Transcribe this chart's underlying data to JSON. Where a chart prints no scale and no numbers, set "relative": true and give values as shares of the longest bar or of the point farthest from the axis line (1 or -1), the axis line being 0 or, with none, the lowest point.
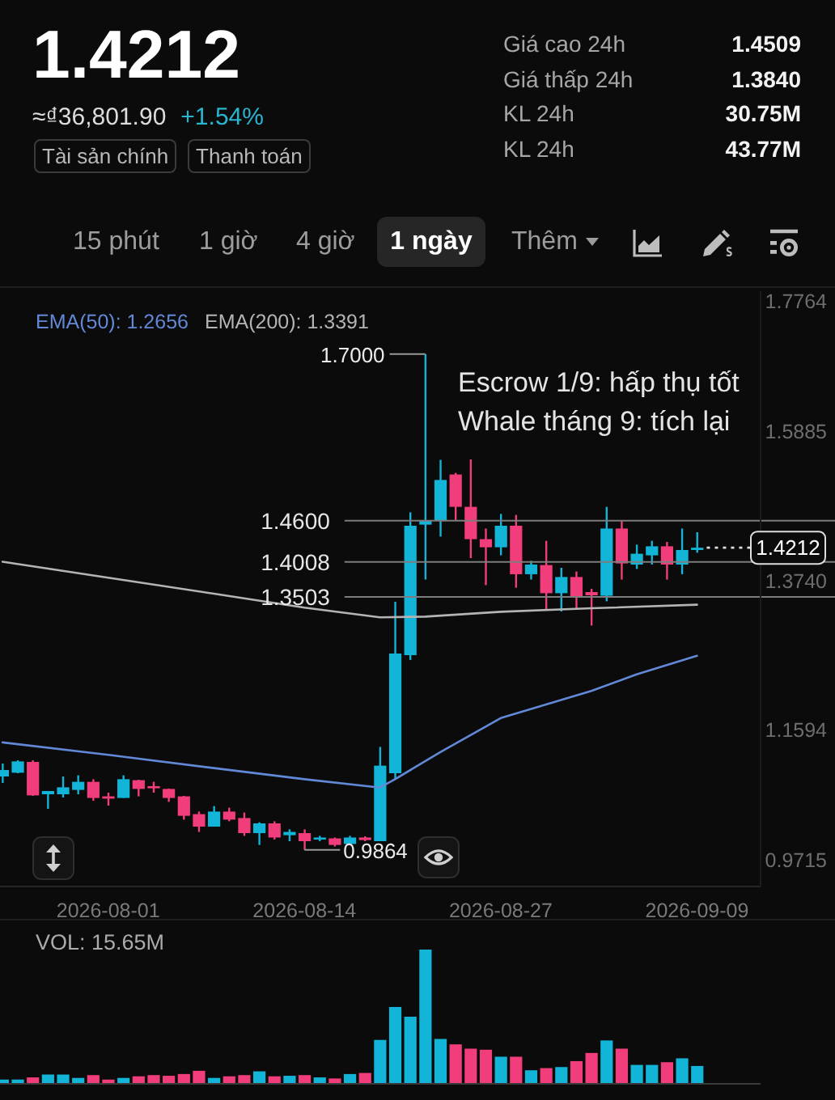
{
  "chart_data": [
    {
      "type": "other",
      "title": "1.4212",
      "annotations": [
        "≈₫36,801.90",
        "+1.54%",
        "Tài sản chính",
        "Thanh toán",
        "Giá cao 24h",
        "1.4509",
        "Giá thấp 24h",
        "1.3840",
        "KL 24h",
        "30.75M",
        "KL 24h",
        "43.77M",
        "15 phút",
        "1 giờ",
        "4 giờ",
        "1 ngày",
        "Thêm"
      ]
    },
    {
      "type": "candlestick",
      "x": [
        "2026-07-25",
        "2026-07-26",
        "2026-07-27",
        "2026-07-28",
        "2026-07-29",
        "2026-07-30",
        "2026-07-31",
        "2026-08-01",
        "2026-08-02",
        "2026-08-03",
        "2026-08-04",
        "2026-08-05",
        "2026-08-06",
        "2026-08-07",
        "2026-08-08",
        "2026-08-09",
        "2026-08-10",
        "2026-08-11",
        "2026-08-12",
        "2026-08-13",
        "2026-08-14",
        "2026-08-15",
        "2026-08-16",
        "2026-08-17",
        "2026-08-18",
        "2026-08-19",
        "2026-08-20",
        "2026-08-21",
        "2026-08-22",
        "2026-08-23",
        "2026-08-24",
        "2026-08-25",
        "2026-08-26",
        "2026-08-27",
        "2026-08-28",
        "2026-08-29",
        "2026-08-30",
        "2026-08-31",
        "2026-09-01",
        "2026-09-02",
        "2026-09-03",
        "2026-09-04",
        "2026-09-05",
        "2026-09-06",
        "2026-09-07",
        "2026-09-08",
        "2026-09-09"
      ],
      "ohlc": [
        [
          1.0919,
          1.1105,
          1.0826,
          1.1012
        ],
        [
          1.0973,
          1.1152,
          1.0966,
          1.1136
        ],
        [
          1.1129,
          1.1152,
          1.064,
          1.0647
        ],
        [
          1.0663,
          1.071,
          1.0454,
          1.071
        ],
        [
          1.0663,
          1.0919,
          1.0617,
          1.0763
        ],
        [
          1.0726,
          1.0936,
          1.0663,
          1.0842
        ],
        [
          1.0842,
          1.088,
          1.057,
          1.061
        ],
        [
          1.0633,
          1.0686,
          1.05,
          1.06
        ],
        [
          1.061,
          1.0936,
          1.061,
          1.088
        ],
        [
          1.0866,
          1.0873,
          1.0633,
          1.074
        ],
        [
          1.078,
          1.0842,
          1.0686,
          1.0749
        ],
        [
          1.074,
          1.0745,
          1.0554,
          1.061
        ],
        [
          1.0633,
          1.064,
          1.0298,
          1.0353
        ],
        [
          1.0377,
          1.0414,
          1.0121,
          1.0197
        ],
        [
          1.0197,
          1.0493,
          1.0197,
          1.0414
        ],
        [
          1.0414,
          1.047,
          1.0274,
          1.0298
        ],
        [
          1.0321,
          1.04,
          1.0065,
          1.0104
        ],
        [
          1.0104,
          1.026,
          0.9934,
          1.0244
        ],
        [
          1.0244,
          1.0274,
          1.0011,
          1.0041
        ],
        [
          1.0074,
          1.0158,
          0.9988,
          1.0121
        ],
        [
          1.0104,
          1.0158,
          0.9864,
          0.9988
        ],
        [
          1.0011,
          1.0065,
          0.9988,
          1.0041
        ],
        [
          1.0028,
          1.0041,
          0.9911,
          0.9934
        ],
        [
          0.9948,
          1.0065,
          0.9934,
          1.0041
        ],
        [
          1.0041,
          1.0058,
          0.9988,
          1.0004
        ],
        [
          0.9988,
          1.1345,
          0.9988,
          1.1075
        ],
        [
          1.0966,
          1.3434,
          1.088,
          1.2689
        ],
        [
          1.2665,
          1.4721,
          1.2596,
          1.4528
        ],
        [
          1.4544,
          1.7,
          1.3753,
          1.4605
        ],
        [
          1.4605,
          1.5476,
          1.4372,
          1.5187
        ],
        [
          1.5266,
          1.5289,
          1.4605,
          1.48
        ],
        [
          1.48,
          1.5483,
          1.4062,
          1.4335
        ],
        [
          1.4335,
          1.4488,
          1.3673,
          1.4218
        ],
        [
          1.4218,
          1.4698,
          1.4102,
          1.4528
        ],
        [
          1.4528,
          1.4684,
          1.3636,
          1.383
        ],
        [
          1.383,
          1.4023,
          1.3753,
          1.3969
        ],
        [
          1.3962,
          1.4311,
          1.3324,
          1.3557
        ],
        [
          1.3557,
          1.3923,
          1.3294,
          1.379
        ],
        [
          1.379,
          1.3869,
          1.3324,
          1.3497
        ],
        [
          1.3573,
          1.362,
          1.3091,
          1.3527
        ],
        [
          1.352,
          1.48,
          1.3441,
          1.4488
        ],
        [
          1.4488,
          1.4605,
          1.3753,
          1.3985
        ],
        [
          1.3969,
          1.4256,
          1.3906,
          1.4125
        ],
        [
          1.4102,
          1.4311,
          1.3969,
          1.4232
        ],
        [
          1.4232,
          1.4295,
          1.3753,
          1.3969
        ],
        [
          1.3969,
          1.4488,
          1.383,
          1.4179
        ],
        [
          1.4179,
          1.4435,
          1.4139,
          1.4212
        ]
      ],
      "colors": [
        "#12b5d8",
        "#12b5d8",
        "#f23d7c",
        "#12b5d8",
        "#12b5d8",
        "#12b5d8",
        "#f23d7c",
        "#f23d7c",
        "#12b5d8",
        "#f23d7c",
        "#f23d7c",
        "#f23d7c",
        "#f23d7c",
        "#f23d7c",
        "#12b5d8",
        "#f23d7c",
        "#f23d7c",
        "#12b5d8",
        "#f23d7c",
        "#12b5d8",
        "#f23d7c",
        "#12b5d8",
        "#f23d7c",
        "#12b5d8",
        "#f23d7c",
        "#12b5d8",
        "#12b5d8",
        "#12b5d8",
        "#12b5d8",
        "#12b5d8",
        "#f23d7c",
        "#f23d7c",
        "#f23d7c",
        "#12b5d8",
        "#f23d7c",
        "#12b5d8",
        "#f23d7c",
        "#12b5d8",
        "#f23d7c",
        "#f23d7c",
        "#12b5d8",
        "#f23d7c",
        "#12b5d8",
        "#12b5d8",
        "#f23d7c",
        "#12b5d8",
        "#12b5d8"
      ],
      "series": [
        {
          "type": "line",
          "name": "EMA(50): 1.2656",
          "color": "#6289d8",
          "x": [
            "2026-07-25",
            "2026-08-01",
            "2026-08-08",
            "2026-08-14",
            "2026-08-19",
            "2026-08-20",
            "2026-08-23",
            "2026-08-27",
            "2026-09-02",
            "2026-09-05",
            "2026-09-09"
          ],
          "values": [
            1.141,
            1.123,
            1.104,
            1.088,
            1.076,
            1.088,
            1.127,
            1.176,
            1.215,
            1.239,
            1.2656
          ]
        },
        {
          "type": "line",
          "name": "EMA(200): 1.3391",
          "color": "#b4b4b4",
          "x": [
            "2026-07-25",
            "2026-08-01",
            "2026-08-08",
            "2026-08-14",
            "2026-08-19",
            "2026-08-22",
            "2026-08-27",
            "2026-09-02",
            "2026-09-09"
          ],
          "values": [
            1.401,
            1.378,
            1.355,
            1.335,
            1.321,
            1.322,
            1.329,
            1.334,
            1.3391
          ]
        }
      ],
      "xlim": [
        "2026-07-24T20:00",
        "2026-09-13T05:00"
      ],
      "xticks": [
        "2026-08-01",
        "2026-08-14",
        "2026-08-27",
        "2026-09-09"
      ],
      "ylim": [
        0.9336,
        1.7904
      ],
      "yticks": [
        0.9715,
        1.1594,
        {
          "value": 1.374,
          "label": "1.3740"
        },
        1.5885,
        1.7764
      ],
      "ref_lines": [
        {
          "axis": "y",
          "value": 1.46,
          "color": "#7d7d7d"
        },
        {
          "axis": "y",
          "value": 1.4008,
          "color": "#7d7d7d"
        },
        {
          "axis": "y",
          "value": 1.3503,
          "color": "#7d7d7d"
        }
      ],
      "annotations": [
        "Escrow 1/9: hấp thụ tốt",
        "Whale tháng 9: tích lại",
        "1.4600",
        "1.4008",
        "1.3503",
        {
          "text": "1.7000",
          "x": "2026-08-22",
          "y": 1.7
        },
        {
          "text": "0.9864",
          "x": "2026-08-14",
          "y": 0.9864
        },
        {
          "text": "1.4212",
          "x": "2026-09-09",
          "y": 1.4212
        }
      ],
      "legend": "top left"
    },
    {
      "type": "bar",
      "title": "VOL: 15.65M",
      "relative": true,
      "tick_labels": false,
      "x": [
        "2026-07-25",
        "2026-07-26",
        "2026-07-27",
        "2026-07-28",
        "2026-07-29",
        "2026-07-30",
        "2026-07-31",
        "2026-08-01",
        "2026-08-02",
        "2026-08-03",
        "2026-08-04",
        "2026-08-05",
        "2026-08-06",
        "2026-08-07",
        "2026-08-08",
        "2026-08-09",
        "2026-08-10",
        "2026-08-11",
        "2026-08-12",
        "2026-08-13",
        "2026-08-14",
        "2026-08-15",
        "2026-08-16",
        "2026-08-17",
        "2026-08-18",
        "2026-08-19",
        "2026-08-20",
        "2026-08-21",
        "2026-08-22",
        "2026-08-23",
        "2026-08-24",
        "2026-08-25",
        "2026-08-26",
        "2026-08-27",
        "2026-08-28",
        "2026-08-29",
        "2026-08-30",
        "2026-08-31",
        "2026-09-01",
        "2026-09-02",
        "2026-09-03",
        "2026-09-04",
        "2026-09-05",
        "2026-09-06",
        "2026-09-07",
        "2026-09-08",
        "2026-09-09"
      ],
      "values": [
        0.032,
        0.032,
        0.048,
        0.069,
        0.069,
        0.044,
        0.065,
        0.032,
        0.044,
        0.056,
        0.065,
        0.06,
        0.073,
        0.097,
        0.044,
        0.056,
        0.065,
        0.093,
        0.056,
        0.06,
        0.065,
        0.048,
        0.04,
        0.073,
        0.081,
        0.327,
        0.573,
        0.5,
        1,
        0.335,
        0.294,
        0.262,
        0.254,
        0.202,
        0.202,
        0.101,
        0.117,
        0.125,
        0.169,
        0.23,
        0.323,
        0.262,
        0.141,
        0.141,
        0.161,
        0.19,
        0.133
      ],
      "colors": [
        "#12b5d8",
        "#12b5d8",
        "#f23d7c",
        "#12b5d8",
        "#12b5d8",
        "#12b5d8",
        "#f23d7c",
        "#f23d7c",
        "#12b5d8",
        "#f23d7c",
        "#f23d7c",
        "#f23d7c",
        "#f23d7c",
        "#f23d7c",
        "#12b5d8",
        "#f23d7c",
        "#f23d7c",
        "#12b5d8",
        "#f23d7c",
        "#12b5d8",
        "#f23d7c",
        "#12b5d8",
        "#f23d7c",
        "#12b5d8",
        "#f23d7c",
        "#12b5d8",
        "#12b5d8",
        "#12b5d8",
        "#12b5d8",
        "#12b5d8",
        "#f23d7c",
        "#f23d7c",
        "#f23d7c",
        "#12b5d8",
        "#f23d7c",
        "#12b5d8",
        "#f23d7c",
        "#12b5d8",
        "#f23d7c",
        "#f23d7c",
        "#12b5d8",
        "#f23d7c",
        "#12b5d8",
        "#12b5d8",
        "#f23d7c",
        "#12b5d8",
        "#12b5d8"
      ],
      "xlim": [
        "2026-07-24T20:00",
        "2026-09-13T05:00"
      ]
    }
  ]
}
